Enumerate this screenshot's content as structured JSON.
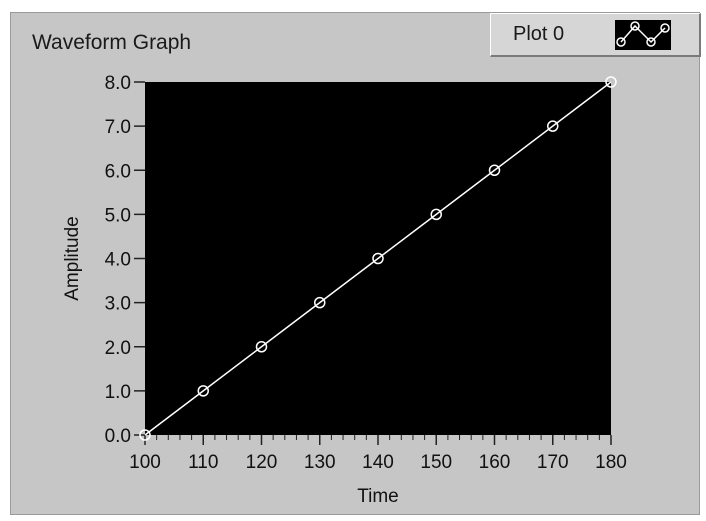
{
  "graph": {
    "title": "Waveform Graph",
    "legend_label": "Plot 0"
  },
  "colors": {
    "panel": "#c6c6c6",
    "plot_area": "#000000",
    "trace": "#ffffff"
  },
  "chart_data": {
    "type": "line",
    "title": "Waveform Graph",
    "xlabel": "Time",
    "ylabel": "Amplitude",
    "xlim": [
      100,
      180
    ],
    "ylim": [
      0,
      8
    ],
    "x_ticks": [
      "100",
      "110",
      "120",
      "130",
      "140",
      "150",
      "160",
      "170",
      "180"
    ],
    "y_ticks": [
      "0.0",
      "1.0",
      "2.0",
      "3.0",
      "4.0",
      "5.0",
      "6.0",
      "7.0",
      "8.0"
    ],
    "grid": false,
    "legend": "top-right",
    "series": [
      {
        "name": "Plot 0",
        "x": [
          100,
          110,
          120,
          130,
          140,
          150,
          160,
          170,
          180
        ],
        "values": [
          0,
          1,
          2,
          3,
          4,
          5,
          6,
          7,
          8
        ],
        "marker": "hollow-circle"
      }
    ]
  }
}
